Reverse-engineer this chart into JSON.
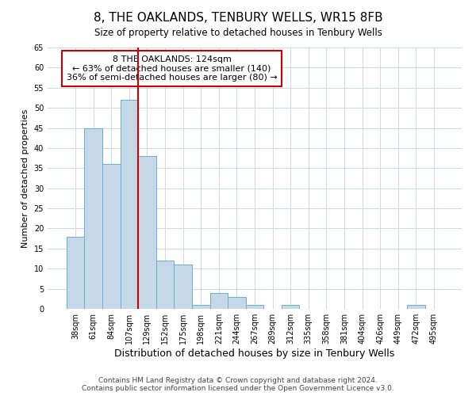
{
  "title": "8, THE OAKLANDS, TENBURY WELLS, WR15 8FB",
  "subtitle": "Size of property relative to detached houses in Tenbury Wells",
  "xlabel": "Distribution of detached houses by size in Tenbury Wells",
  "ylabel": "Number of detached properties",
  "bar_labels": [
    "38sqm",
    "61sqm",
    "84sqm",
    "107sqm",
    "129sqm",
    "152sqm",
    "175sqm",
    "198sqm",
    "221sqm",
    "244sqm",
    "267sqm",
    "289sqm",
    "312sqm",
    "335sqm",
    "358sqm",
    "381sqm",
    "404sqm",
    "426sqm",
    "449sqm",
    "472sqm",
    "495sqm"
  ],
  "bar_values": [
    18,
    45,
    36,
    52,
    38,
    12,
    11,
    1,
    4,
    3,
    1,
    0,
    1,
    0,
    0,
    0,
    0,
    0,
    0,
    1,
    0
  ],
  "bar_color": "#c5d8e8",
  "bar_edgecolor": "#6aadd5",
  "vline_color": "#cc0000",
  "annotation_text": "8 THE OAKLANDS: 124sqm\n← 63% of detached houses are smaller (140)\n36% of semi-detached houses are larger (80) →",
  "annotation_box_edgecolor": "#cc0000",
  "annotation_box_facecolor": "#ffffff",
  "ylim": [
    0,
    65
  ],
  "yticks": [
    0,
    5,
    10,
    15,
    20,
    25,
    30,
    35,
    40,
    45,
    50,
    55,
    60,
    65
  ],
  "grid_color": "#cdd8e8",
  "footer": "Contains HM Land Registry data © Crown copyright and database right 2024.\nContains public sector information licensed under the Open Government Licence v3.0.",
  "title_fontsize": 11,
  "xlabel_fontsize": 9,
  "ylabel_fontsize": 8,
  "tick_fontsize": 7,
  "footer_fontsize": 6.5,
  "annotation_fontsize": 8
}
